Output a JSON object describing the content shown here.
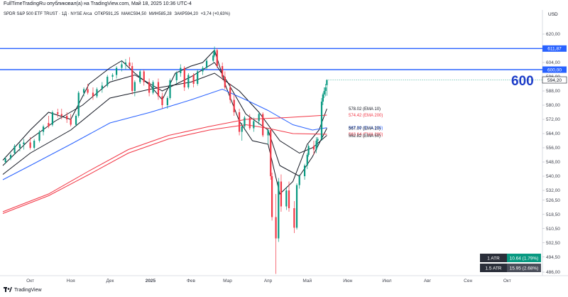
{
  "header": {
    "published_by": "FullTimeTradingRu опубликовал(а) на TradingView.com, Май 18, 2025 10:36 UTC-4"
  },
  "legend": {
    "symbol": "SPDR S&P 500 ETF TRUST · 1Д · NYSE Arca",
    "open": "ОТКР591,25",
    "high": "МАКС594,50",
    "low": "МИН585,28",
    "close": "ЗАКР594,20",
    "change": "+3,74 (+0,63%)"
  },
  "price_axis": {
    "currency": "USD"
  },
  "footer": {
    "brand": "TradingView"
  },
  "colors": {
    "up": "#089981",
    "down": "#f23645",
    "ema10": "#131722",
    "ema20": "#131722",
    "ema50": "#131722",
    "ema100": "#2962ff",
    "ema200": "#f23645",
    "hline": "#2962ff",
    "big_label": "#1c3cc8",
    "marker": "#131722"
  },
  "annotation": {
    "text": "600"
  },
  "atr_box": [
    {
      "label": "1 ATR",
      "value": "10.64 (1.79%)",
      "color": "#089981"
    },
    {
      "label": "1.5 ATR",
      "value": "15.95 (2.68%)",
      "color": "#4a4e5a"
    }
  ],
  "chart_data": {
    "type": "candlestick",
    "y_range": [
      484,
      628
    ],
    "y_ticks": [
      620,
      612,
      604,
      596,
      588,
      580,
      572,
      564,
      556,
      548,
      540,
      532,
      526.5,
      518.5,
      510.5,
      502.5,
      494.5,
      486
    ],
    "y_tick_labels": [
      "620,00",
      "612,00",
      "604,00",
      "596,00",
      "588,00",
      "580,00",
      "572,00",
      "564,00",
      "556,00",
      "548,00",
      "540,00",
      "532,00",
      "526,50",
      "518,50",
      "510,50",
      "502,50",
      "494,50",
      "486,00"
    ],
    "x_range": [
      "2024-09-10",
      "2025-10-28"
    ],
    "x_ticks": [
      {
        "date": "2024-10-01",
        "label": "Окт",
        "bold": false
      },
      {
        "date": "2024-11-01",
        "label": "Ноя",
        "bold": false
      },
      {
        "date": "2024-12-01",
        "label": "Дек",
        "bold": false
      },
      {
        "date": "2025-01-01",
        "label": "2025",
        "bold": true
      },
      {
        "date": "2025-02-01",
        "label": "Фев",
        "bold": false
      },
      {
        "date": "2025-03-01",
        "label": "Мар",
        "bold": false
      },
      {
        "date": "2025-04-01",
        "label": "Апр",
        "bold": false
      },
      {
        "date": "2025-05-01",
        "label": "Май",
        "bold": false
      },
      {
        "date": "2025-06-01",
        "label": "Июн",
        "bold": false
      },
      {
        "date": "2025-07-01",
        "label": "Июл",
        "bold": false
      },
      {
        "date": "2025-08-01",
        "label": "Авг",
        "bold": false
      },
      {
        "date": "2025-09-01",
        "label": "Сен",
        "bold": false
      },
      {
        "date": "2025-10-01",
        "label": "Окт",
        "bold": false
      }
    ],
    "horizontal_lines": [
      {
        "value": 611.87,
        "label": "611,87"
      },
      {
        "value": 600.0,
        "label": "600,00"
      }
    ],
    "last_price": {
      "value": 594.2,
      "label": "594,20"
    },
    "ema_labels": [
      {
        "value": 578.02,
        "text": "578.02 (EMA 10)",
        "color": "#131722"
      },
      {
        "value": 574.42,
        "text": "574.42 (EMA 200)",
        "color": "#f23645"
      },
      {
        "value": 567.3,
        "text": "567.30 (EMA 100)",
        "color": "#2962ff"
      },
      {
        "value": 567.07,
        "text": "567.07 (EMA 20)",
        "color": "#131722"
      },
      {
        "value": 563.64,
        "text": "563.64 (EMA 200)",
        "color": "#f23645"
      },
      {
        "value": 562.82,
        "text": "562.82 (EMA 50)",
        "color": "#131722"
      }
    ],
    "ema_lines": [
      {
        "name": "EMA 10",
        "color": "#131722",
        "points": [
          [
            "2024-09-10",
            549
          ],
          [
            "2024-09-20",
            557
          ],
          [
            "2024-10-01",
            566
          ],
          [
            "2024-10-15",
            576
          ],
          [
            "2024-11-01",
            572
          ],
          [
            "2024-11-15",
            592
          ],
          [
            "2024-12-01",
            601
          ],
          [
            "2024-12-10",
            605
          ],
          [
            "2024-12-20",
            598
          ],
          [
            "2025-01-01",
            591
          ],
          [
            "2025-01-10",
            583
          ],
          [
            "2025-01-20",
            598
          ],
          [
            "2025-02-01",
            602
          ],
          [
            "2025-02-10",
            604
          ],
          [
            "2025-02-19",
            611
          ],
          [
            "2025-02-28",
            590
          ],
          [
            "2025-03-10",
            571
          ],
          [
            "2025-03-20",
            560
          ],
          [
            "2025-04-01",
            558
          ],
          [
            "2025-04-10",
            530
          ],
          [
            "2025-04-20",
            537
          ],
          [
            "2025-05-01",
            558
          ],
          [
            "2025-05-10",
            566
          ],
          [
            "2025-05-16",
            578
          ]
        ]
      },
      {
        "name": "EMA 20",
        "color": "#131722",
        "points": [
          [
            "2024-09-10",
            546
          ],
          [
            "2024-10-01",
            561
          ],
          [
            "2024-10-20",
            571
          ],
          [
            "2024-11-10",
            580
          ],
          [
            "2024-12-01",
            593
          ],
          [
            "2024-12-20",
            597
          ],
          [
            "2025-01-10",
            588
          ],
          [
            "2025-02-01",
            596
          ],
          [
            "2025-02-19",
            604
          ],
          [
            "2025-03-01",
            593
          ],
          [
            "2025-03-15",
            575
          ],
          [
            "2025-04-01",
            566
          ],
          [
            "2025-04-10",
            546
          ],
          [
            "2025-04-25",
            540
          ],
          [
            "2025-05-05",
            551
          ],
          [
            "2025-05-16",
            567
          ]
        ]
      },
      {
        "name": "EMA 50",
        "color": "#131722",
        "points": [
          [
            "2024-09-10",
            541
          ],
          [
            "2024-10-01",
            553
          ],
          [
            "2024-11-01",
            566
          ],
          [
            "2024-12-01",
            584
          ],
          [
            "2025-01-01",
            589
          ],
          [
            "2025-02-01",
            593
          ],
          [
            "2025-02-19",
            598
          ],
          [
            "2025-03-10",
            588
          ],
          [
            "2025-03-25",
            576
          ],
          [
            "2025-04-10",
            560
          ],
          [
            "2025-04-25",
            553
          ],
          [
            "2025-05-05",
            556
          ],
          [
            "2025-05-16",
            563
          ]
        ]
      },
      {
        "name": "EMA 100",
        "color": "#2962ff",
        "points": [
          [
            "2024-09-10",
            538
          ],
          [
            "2024-10-01",
            546
          ],
          [
            "2024-11-01",
            558
          ],
          [
            "2024-12-01",
            570
          ],
          [
            "2025-01-01",
            576
          ],
          [
            "2025-02-01",
            583
          ],
          [
            "2025-02-25",
            589
          ],
          [
            "2025-03-15",
            583
          ],
          [
            "2025-04-01",
            577
          ],
          [
            "2025-04-20",
            569
          ],
          [
            "2025-05-05",
            566
          ],
          [
            "2025-05-16",
            567.3
          ]
        ]
      },
      {
        "name": "EMA 200",
        "color": "#f23645",
        "points": [
          [
            "2024-09-10",
            520
          ],
          [
            "2024-10-15",
            530
          ],
          [
            "2024-11-15",
            543
          ],
          [
            "2024-12-15",
            555
          ],
          [
            "2025-01-15",
            563
          ],
          [
            "2025-02-15",
            568
          ],
          [
            "2025-03-15",
            572
          ],
          [
            "2025-04-15",
            573
          ],
          [
            "2025-05-16",
            574.4
          ]
        ]
      },
      {
        "name": "EMA 200",
        "color": "#f23645",
        "points": [
          [
            "2024-09-10",
            519
          ],
          [
            "2024-10-15",
            529
          ],
          [
            "2024-11-15",
            541
          ],
          [
            "2024-12-15",
            553
          ],
          [
            "2025-01-15",
            561
          ],
          [
            "2025-02-15",
            566
          ],
          [
            "2025-03-15",
            569
          ],
          [
            "2025-04-01",
            567
          ],
          [
            "2025-04-20",
            564
          ],
          [
            "2025-05-16",
            563.6
          ]
        ]
      }
    ],
    "candles": [
      [
        "2024-09-12",
        548,
        551,
        547,
        550
      ],
      [
        "2024-09-16",
        550,
        553,
        549,
        552
      ],
      [
        "2024-09-19",
        553,
        558,
        552,
        557
      ],
      [
        "2024-09-23",
        556,
        559,
        554,
        558
      ],
      [
        "2024-09-26",
        558,
        561,
        555,
        559
      ],
      [
        "2024-10-01",
        559,
        562,
        555,
        556
      ],
      [
        "2024-10-04",
        556,
        561,
        555,
        560
      ],
      [
        "2024-10-08",
        560,
        566,
        559,
        565
      ],
      [
        "2024-10-11",
        565,
        569,
        563,
        568
      ],
      [
        "2024-10-15",
        570,
        574,
        567,
        568
      ],
      [
        "2024-10-18",
        569,
        577,
        568,
        576
      ],
      [
        "2024-10-22",
        576,
        578,
        573,
        575
      ],
      [
        "2024-10-25",
        575,
        578,
        572,
        574
      ],
      [
        "2024-10-29",
        574,
        576,
        570,
        572
      ],
      [
        "2024-11-01",
        572,
        575,
        568,
        569
      ],
      [
        "2024-11-05",
        569,
        575,
        568,
        574
      ],
      [
        "2024-11-07",
        574,
        588,
        573,
        587
      ],
      [
        "2024-11-11",
        587,
        590,
        585,
        589
      ],
      [
        "2024-11-14",
        589,
        592,
        586,
        587
      ],
      [
        "2024-11-18",
        587,
        590,
        583,
        585
      ],
      [
        "2024-11-21",
        585,
        590,
        584,
        589
      ],
      [
        "2024-11-25",
        589,
        593,
        587,
        591
      ],
      [
        "2024-11-29",
        591,
        597,
        590,
        596
      ],
      [
        "2024-12-03",
        596,
        598,
        594,
        597
      ],
      [
        "2024-12-06",
        597,
        602,
        595,
        601
      ],
      [
        "2024-12-10",
        601,
        605,
        599,
        603
      ],
      [
        "2024-12-13",
        603,
        606,
        600,
        604
      ],
      [
        "2024-12-16",
        604,
        607,
        601,
        602
      ],
      [
        "2024-12-18",
        602,
        604,
        586,
        588
      ],
      [
        "2024-12-20",
        588,
        594,
        585,
        593
      ],
      [
        "2024-12-24",
        593,
        600,
        592,
        599
      ],
      [
        "2024-12-27",
        599,
        600,
        591,
        593
      ],
      [
        "2024-12-31",
        593,
        595,
        585,
        587
      ],
      [
        "2025-01-03",
        587,
        594,
        586,
        593
      ],
      [
        "2025-01-07",
        593,
        595,
        583,
        585
      ],
      [
        "2025-01-10",
        585,
        587,
        578,
        580
      ],
      [
        "2025-01-14",
        580,
        585,
        578,
        584
      ],
      [
        "2025-01-16",
        584,
        595,
        583,
        594
      ],
      [
        "2025-01-21",
        594,
        599,
        592,
        598
      ],
      [
        "2025-01-24",
        598,
        603,
        596,
        601
      ],
      [
        "2025-01-27",
        601,
        602,
        588,
        590
      ],
      [
        "2025-01-30",
        590,
        598,
        589,
        597
      ],
      [
        "2025-02-03",
        597,
        598,
        590,
        592
      ],
      [
        "2025-02-06",
        592,
        600,
        591,
        599
      ],
      [
        "2025-02-10",
        599,
        602,
        597,
        601
      ],
      [
        "2025-02-13",
        601,
        606,
        600,
        605
      ],
      [
        "2025-02-18",
        605,
        610,
        604,
        608
      ],
      [
        "2025-02-19",
        608,
        613,
        607,
        611
      ],
      [
        "2025-02-21",
        611,
        612,
        601,
        602
      ],
      [
        "2025-02-25",
        602,
        604,
        594,
        596
      ],
      [
        "2025-02-27",
        596,
        599,
        589,
        590
      ],
      [
        "2025-03-03",
        590,
        592,
        581,
        583
      ],
      [
        "2025-03-06",
        583,
        586,
        574,
        576
      ],
      [
        "2025-03-10",
        576,
        578,
        563,
        565
      ],
      [
        "2025-03-12",
        565,
        570,
        560,
        568
      ],
      [
        "2025-03-14",
        568,
        574,
        566,
        573
      ],
      [
        "2025-03-18",
        573,
        575,
        566,
        567
      ],
      [
        "2025-03-21",
        567,
        573,
        565,
        571
      ],
      [
        "2025-03-25",
        571,
        576,
        569,
        575
      ],
      [
        "2025-03-28",
        575,
        576,
        562,
        563
      ],
      [
        "2025-04-01",
        563,
        567,
        558,
        566
      ],
      [
        "2025-04-03",
        566,
        567,
        538,
        540
      ],
      [
        "2025-04-04",
        540,
        542,
        515,
        517
      ],
      [
        "2025-04-07",
        517,
        530,
        485,
        505
      ],
      [
        "2025-04-09",
        505,
        539,
        503,
        537
      ],
      [
        "2025-04-11",
        537,
        541,
        520,
        523
      ],
      [
        "2025-04-15",
        523,
        534,
        521,
        532
      ],
      [
        "2025-04-17",
        532,
        537,
        520,
        522
      ],
      [
        "2025-04-21",
        522,
        526,
        508,
        511
      ],
      [
        "2025-04-23",
        511,
        536,
        510,
        535
      ],
      [
        "2025-04-25",
        535,
        541,
        533,
        540
      ],
      [
        "2025-04-29",
        540,
        547,
        538,
        546
      ],
      [
        "2025-05-01",
        546,
        553,
        544,
        552
      ],
      [
        "2025-05-02",
        552,
        558,
        551,
        557
      ],
      [
        "2025-05-06",
        557,
        560,
        552,
        555
      ],
      [
        "2025-05-08",
        555,
        562,
        553,
        560
      ],
      [
        "2025-05-09",
        560,
        562,
        557,
        561
      ],
      [
        "2025-05-12",
        561,
        584,
        560,
        582
      ],
      [
        "2025-05-13",
        582,
        587,
        580,
        586
      ],
      [
        "2025-05-14",
        586,
        590,
        584,
        588
      ],
      [
        "2025-05-15",
        588,
        592,
        585,
        590
      ],
      [
        "2025-05-16",
        591.25,
        594.5,
        585.28,
        594.2
      ]
    ]
  }
}
